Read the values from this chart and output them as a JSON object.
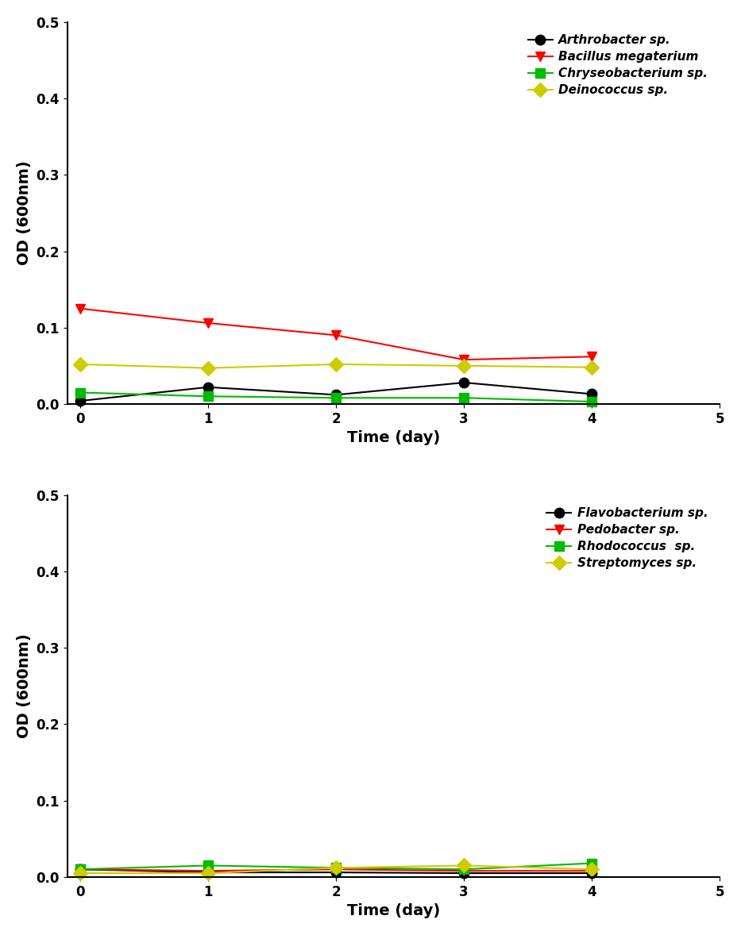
{
  "x": [
    0,
    1,
    2,
    3,
    4
  ],
  "xlim": [
    -0.1,
    5
  ],
  "ylim": [
    0,
    0.5
  ],
  "yticks": [
    0,
    0.1,
    0.2,
    0.3,
    0.4,
    0.5
  ],
  "xticks": [
    0,
    1,
    2,
    3,
    4,
    5
  ],
  "xlabel": "Time (day)",
  "ylabel": "OD (600nm)",
  "plot1": {
    "Arthrobacter sp.": {
      "y": [
        0.004,
        0.022,
        0.012,
        0.028,
        0.013
      ],
      "color": "black",
      "marker": "o",
      "markerface": "black",
      "linestyle": "-"
    },
    "Bacillus megaterium": {
      "y": [
        0.125,
        0.106,
        0.09,
        0.058,
        0.062
      ],
      "color": "red",
      "marker": "v",
      "markerface": "red",
      "linestyle": "-"
    },
    "Chryseobacterium sp.": {
      "y": [
        0.015,
        0.01,
        0.008,
        0.008,
        0.003
      ],
      "color": "#00BB00",
      "marker": "s",
      "markerface": "#00BB00",
      "linestyle": "-"
    },
    "Deinococcus sp.": {
      "y": [
        0.052,
        0.047,
        0.052,
        0.05,
        0.048
      ],
      "color": "#CCCC00",
      "marker": "D",
      "markerface": "#CCCC00",
      "linestyle": "-"
    }
  },
  "plot2": {
    "Flavobacterium sp.": {
      "y": [
        0.01,
        0.006,
        0.006,
        0.005,
        0.005
      ],
      "color": "black",
      "marker": "o",
      "markerface": "black",
      "linestyle": "-"
    },
    "Pedobacter sp.": {
      "y": [
        0.01,
        0.008,
        0.01,
        0.008,
        0.008
      ],
      "color": "red",
      "marker": "v",
      "markerface": "red",
      "linestyle": "-"
    },
    "Rhodococcus  sp.": {
      "y": [
        0.01,
        0.015,
        0.012,
        0.01,
        0.018
      ],
      "color": "#00BB00",
      "marker": "s",
      "markerface": "#00BB00",
      "linestyle": "-"
    },
    "Streptomyces sp.": {
      "y": [
        0.005,
        0.005,
        0.012,
        0.015,
        0.01
      ],
      "color": "#CCCC00",
      "marker": "D",
      "markerface": "#CCCC00",
      "linestyle": "-"
    }
  },
  "markersize": 9,
  "linewidth": 1.5,
  "background_color": "white",
  "legend_fontsize": 11,
  "axis_label_fontsize": 14,
  "tick_fontsize": 12
}
